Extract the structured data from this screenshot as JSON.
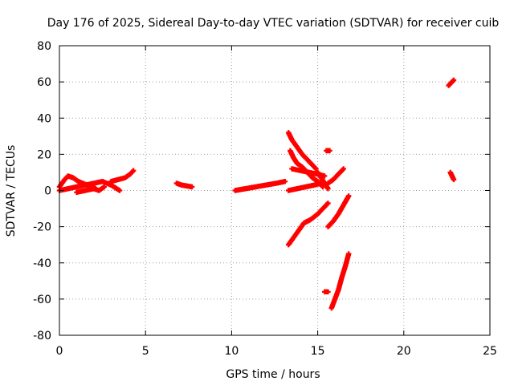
{
  "chart_data": {
    "type": "scatter",
    "title": "Day 176 of 2025, Sidereal Day-to-day VTEC variation (SDTVAR) for receiver cuib",
    "xlabel": "GPS time / hours",
    "ylabel": "SDTVAR / TECUs",
    "xlim": [
      0,
      25
    ],
    "ylim": [
      -80,
      80
    ],
    "xticks": [
      0,
      5,
      10,
      15,
      20,
      25
    ],
    "yticks": [
      -80,
      -60,
      -40,
      -20,
      0,
      20,
      40,
      60,
      80
    ],
    "grid": true,
    "marker": "plus",
    "color": "#ff0000",
    "segments": [
      {
        "name": "arc-1",
        "points": [
          [
            0.0,
            2
          ],
          [
            0.3,
            6
          ],
          [
            0.5,
            8
          ],
          [
            0.8,
            7
          ],
          [
            1.1,
            5
          ],
          [
            1.6,
            3
          ],
          [
            2.0,
            2
          ]
        ]
      },
      {
        "name": "arc-2",
        "points": [
          [
            0.0,
            0
          ],
          [
            0.5,
            1
          ],
          [
            1.0,
            2
          ],
          [
            1.5,
            3
          ],
          [
            2.0,
            4
          ],
          [
            2.5,
            5
          ],
          [
            3.0,
            3
          ],
          [
            3.5,
            0
          ]
        ]
      },
      {
        "name": "arc-3",
        "points": [
          [
            1.0,
            -1
          ],
          [
            1.5,
            0
          ],
          [
            2.0,
            1
          ],
          [
            2.3,
            0
          ],
          [
            2.6,
            2
          ]
        ]
      },
      {
        "name": "arc-4",
        "points": [
          [
            3.0,
            5
          ],
          [
            3.4,
            6
          ],
          [
            3.8,
            7
          ],
          [
            4.1,
            9
          ],
          [
            4.3,
            11
          ]
        ]
      },
      {
        "name": "arc-5",
        "points": [
          [
            6.8,
            4
          ],
          [
            7.1,
            3
          ],
          [
            7.4,
            2.5
          ],
          [
            7.7,
            2
          ]
        ]
      },
      {
        "name": "arc-6",
        "points": [
          [
            10.2,
            0
          ],
          [
            10.8,
            1
          ],
          [
            11.4,
            2
          ],
          [
            12.0,
            3
          ],
          [
            12.6,
            4
          ],
          [
            13.1,
            5
          ]
        ]
      },
      {
        "name": "arc-7",
        "points": [
          [
            13.3,
            32
          ],
          [
            13.5,
            28
          ],
          [
            13.8,
            24
          ],
          [
            14.1,
            20
          ],
          [
            14.4,
            17
          ],
          [
            14.7,
            14
          ],
          [
            14.9,
            12
          ]
        ]
      },
      {
        "name": "arc-8",
        "points": [
          [
            13.4,
            22
          ],
          [
            13.6,
            18
          ],
          [
            13.8,
            15
          ],
          [
            14.1,
            13
          ],
          [
            14.4,
            10
          ],
          [
            14.7,
            7
          ],
          [
            15.0,
            5
          ],
          [
            15.3,
            2
          ]
        ]
      },
      {
        "name": "arc-9",
        "points": [
          [
            13.5,
            12
          ],
          [
            14.0,
            11
          ],
          [
            14.5,
            10
          ],
          [
            15.0,
            9
          ],
          [
            15.4,
            8
          ]
        ]
      },
      {
        "name": "arc-10",
        "points": [
          [
            13.3,
            0
          ],
          [
            13.8,
            1
          ],
          [
            14.3,
            2
          ],
          [
            14.8,
            3
          ],
          [
            15.2,
            4
          ]
        ]
      },
      {
        "name": "arc-11",
        "points": [
          [
            15.0,
            10
          ],
          [
            15.2,
            7
          ],
          [
            15.4,
            4
          ],
          [
            15.6,
            1
          ]
        ]
      },
      {
        "name": "arc-12",
        "points": [
          [
            15.5,
            22
          ],
          [
            15.7,
            22
          ]
        ]
      },
      {
        "name": "arc-13",
        "points": [
          [
            15.6,
            4
          ],
          [
            15.9,
            6
          ],
          [
            16.2,
            9
          ],
          [
            16.5,
            12
          ]
        ]
      },
      {
        "name": "arc-14",
        "points": [
          [
            13.3,
            -30
          ],
          [
            13.6,
            -26
          ],
          [
            13.9,
            -22
          ],
          [
            14.2,
            -18
          ],
          [
            14.6,
            -16
          ],
          [
            15.0,
            -13
          ],
          [
            15.3,
            -10
          ],
          [
            15.6,
            -7
          ]
        ]
      },
      {
        "name": "arc-15",
        "points": [
          [
            15.6,
            -20
          ],
          [
            15.9,
            -17
          ],
          [
            16.2,
            -13
          ],
          [
            16.5,
            -8
          ],
          [
            16.8,
            -3
          ]
        ]
      },
      {
        "name": "arc-16",
        "points": [
          [
            15.4,
            -56
          ],
          [
            15.6,
            -56
          ]
        ]
      },
      {
        "name": "arc-17",
        "points": [
          [
            15.8,
            -65
          ],
          [
            16.0,
            -60
          ],
          [
            16.2,
            -55
          ],
          [
            16.4,
            -48
          ],
          [
            16.6,
            -42
          ],
          [
            16.8,
            -35
          ]
        ]
      },
      {
        "name": "arc-18",
        "points": [
          [
            22.6,
            58
          ],
          [
            22.8,
            60
          ],
          [
            22.9,
            61
          ]
        ]
      },
      {
        "name": "arc-19",
        "points": [
          [
            22.7,
            10
          ],
          [
            22.8,
            8
          ],
          [
            22.9,
            6
          ]
        ]
      }
    ]
  }
}
